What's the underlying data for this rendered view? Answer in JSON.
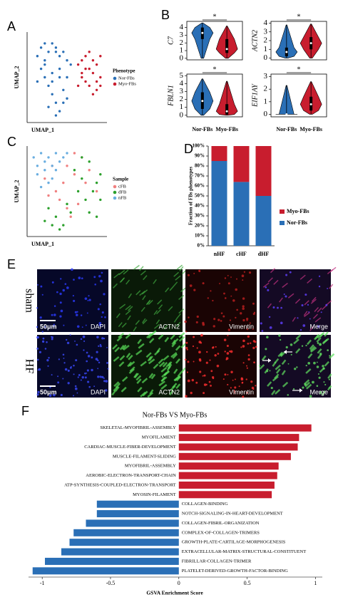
{
  "panel_labels": [
    "A",
    "B",
    "C",
    "D",
    "E",
    "F"
  ],
  "chart_data": [
    {
      "type": "scatter",
      "legend_title": "Phenotype",
      "x_label": "UMAP_1",
      "y_label": "UMAP_2",
      "xlim": [
        -10,
        10
      ],
      "ylim": [
        -10,
        10
      ],
      "series": [
        {
          "name": "Nor-FBs",
          "color": "#2a6fb6",
          "x": [
            -8,
            -7,
            -6,
            -5,
            -4,
            -3,
            -2,
            -1,
            0,
            1,
            -7,
            -6,
            -5,
            -4,
            -3,
            -2,
            -1,
            0,
            -8,
            -6,
            -4,
            -2,
            0,
            -5,
            -3,
            -1,
            -6,
            -4,
            -2,
            -3
          ],
          "values": [
            5,
            7,
            8,
            6,
            8,
            7,
            5,
            6,
            4,
            3,
            2,
            0,
            -2,
            -4,
            -6,
            -8,
            -3,
            0,
            -1,
            3,
            1,
            2,
            -5,
            -7,
            -9,
            -6,
            4,
            -1,
            0,
            6
          ]
        },
        {
          "name": "Myo-FBs",
          "color": "#c81d2e",
          "x": [
            3,
            4,
            5,
            6,
            7,
            8,
            9,
            4,
            5,
            6,
            7,
            8,
            9,
            3,
            5,
            7,
            9,
            6,
            8,
            4
          ],
          "values": [
            3,
            4,
            5,
            6,
            4,
            3,
            5,
            0,
            -1,
            -2,
            1,
            -3,
            0,
            -2,
            2,
            -4,
            -2,
            2,
            -1,
            1
          ]
        }
      ]
    },
    {
      "type": "violin",
      "categories": [
        "Nor-FBs",
        "Myo-FBs"
      ],
      "colors": [
        "#2a6fb6",
        "#c81d2e"
      ],
      "panels": [
        {
          "y_label": "C7",
          "ylim": [
            -0.2,
            4.8
          ],
          "yticks": [
            0,
            1,
            2,
            3,
            4
          ],
          "significance": "*",
          "groups": [
            {
              "min": 0,
              "q1": 2.5,
              "median": 3.3,
              "q3": 4,
              "max": 4.6
            },
            {
              "min": 0,
              "q1": 0.7,
              "median": 1.2,
              "q3": 2.5,
              "max": 4.2
            }
          ]
        },
        {
          "y_label": "ACTN2",
          "ylim": [
            -0.2,
            4.2
          ],
          "yticks": [
            0,
            1,
            2,
            3,
            4
          ],
          "significance": "*",
          "groups": [
            {
              "min": 0,
              "q1": 0.2,
              "median": 0.7,
              "q3": 1.2,
              "max": 3.8
            },
            {
              "min": 0,
              "q1": 1,
              "median": 1.7,
              "q3": 2.4,
              "max": 3.9
            }
          ]
        },
        {
          "y_label": "FBLN1",
          "ylim": [
            -0.2,
            5.2
          ],
          "yticks": [
            0,
            1,
            2,
            3,
            4,
            5
          ],
          "significance": "*",
          "groups": [
            {
              "min": 0,
              "q1": 0.8,
              "median": 1.8,
              "q3": 2.9,
              "max": 4.6
            },
            {
              "min": 0,
              "q1": 0.1,
              "median": 0.5,
              "q3": 1.4,
              "max": 4.3
            }
          ]
        },
        {
          "y_label": "EIF1AY",
          "ylim": [
            -0.2,
            3.2
          ],
          "yticks": [
            0,
            1,
            2,
            3
          ],
          "significance": "*",
          "groups": [
            {
              "min": 0,
              "q1": 0,
              "median": 0,
              "q3": 0,
              "max": 2.3
            },
            {
              "min": 0,
              "q1": 0.3,
              "median": 0.8,
              "q3": 1.4,
              "max": 2.6
            }
          ]
        }
      ]
    },
    {
      "type": "scatter",
      "legend_title": "Sample",
      "x_label": "UMAP_1",
      "y_label": "UMAP_2",
      "xlim": [
        -10,
        10
      ],
      "ylim": [
        -10,
        10
      ],
      "series": [
        {
          "name": "cFB",
          "color": "#f08080",
          "x": [
            -6,
            -3,
            0,
            2,
            4,
            -5,
            -1,
            3,
            6,
            1,
            -2,
            5,
            -4,
            8,
            2,
            0
          ],
          "values": [
            3,
            0,
            6,
            4,
            8,
            -1,
            2,
            -3,
            5,
            -6,
            -2,
            2,
            6,
            0,
            9,
            -4
          ]
        },
        {
          "name": "dFB",
          "color": "#2ca02c",
          "x": [
            2,
            4,
            6,
            8,
            9,
            3,
            5,
            7,
            9,
            -5,
            -3,
            -1,
            1,
            -4,
            -2,
            0,
            6,
            8,
            4,
            -6
          ],
          "values": [
            5,
            3,
            7,
            2,
            -2,
            0,
            -2,
            0,
            4,
            -4,
            -6,
            -8,
            -5,
            -8,
            -9,
            -3,
            -5,
            -6,
            8,
            -7
          ]
        },
        {
          "name": "nFB",
          "color": "#6aaee0",
          "x": [
            -9,
            -8,
            -7,
            -6,
            -5,
            -4,
            -3,
            -8,
            -6,
            -4,
            -2,
            -7,
            -5,
            -3,
            -1,
            0
          ],
          "values": [
            8,
            6,
            9,
            7,
            8,
            6,
            9,
            4,
            5,
            3,
            7,
            1,
            2,
            5,
            8,
            9
          ]
        }
      ]
    },
    {
      "type": "bar",
      "stacked": true,
      "y_label": "Fraction of FBs phenotypes",
      "categories": [
        "nHF",
        "cHF",
        "dHF"
      ],
      "ylim": [
        0,
        100
      ],
      "yticks": [
        {
          "value": 0,
          "label": "0%"
        },
        {
          "value": 10,
          "label": "10%"
        },
        {
          "value": 20,
          "label": "20%"
        },
        {
          "value": 30,
          "label": "30%"
        },
        {
          "value": 40,
          "label": "40%"
        },
        {
          "value": 50,
          "label": "50%"
        },
        {
          "value": 60,
          "label": "60%"
        },
        {
          "value": 70,
          "label": "70%"
        },
        {
          "value": 80,
          "label": "80%"
        },
        {
          "value": 90,
          "label": "90%"
        },
        {
          "value": 100,
          "label": "100%"
        }
      ],
      "series": [
        {
          "name": "Nor-FBs",
          "color": "#2a6fb6",
          "values": [
            85,
            64,
            50
          ]
        },
        {
          "name": "Myo-FBs",
          "color": "#c81d2e",
          "values": [
            15,
            36,
            50
          ]
        }
      ]
    },
    {
      "type": "barh",
      "title": "Nor-FBs VS Myo-FBs",
      "x_label": "GSVA Enrichment Score",
      "positive_color": "#c81d2e",
      "negative_color": "#2a6fb6",
      "xlim": [
        -1.1,
        1.05
      ],
      "xticks": [
        -1,
        -0.5,
        0,
        0.5,
        1
      ],
      "categories": [
        "SKELETAL-MYOFIBRIL-ASSEMBLY",
        "MYOFILAMENT",
        "CARDIAC-MUSCLE-FIBER-DEVELOPMENT",
        "MUSCLE-FILAMENT-SLIDING",
        "MYOFIBRIL-ASSEMBLY",
        "AEROBIC-ELECTRON-TRANSPORT-CHAIN",
        "ATP-SYNTHESIS-COUPLED-ELECTRON-TRANSPORT",
        "MYOSIN-FILAMENT",
        "COLLAGEN-BINDING",
        "NOTCH-SIGNALING-IN-HEART-DEVELOPMENT",
        "COLLAGEN-FIBRIL-ORGANIZATION",
        "COMPLEX-OF-COLLAGEN-TRIMERS",
        "GROWTH-PLATE-CARTILAGE-MORPHOGENESIS",
        "EXTRACELLULAR-MATRIX-STRUCTURAL-CONSTITUENT",
        "FIBRILLAR-COLLAGEN-TRIMER",
        "PLATELET-DERIVED-GROWTH-FACTOR-BINDING"
      ],
      "values": [
        0.97,
        0.88,
        0.87,
        0.82,
        0.73,
        0.72,
        0.7,
        0.68,
        -0.6,
        -0.6,
        -0.68,
        -0.77,
        -0.8,
        -0.86,
        -0.98,
        -1.07
      ]
    }
  ],
  "panel_e": {
    "rows": [
      "sham",
      "HF"
    ],
    "columns": [
      "DAPI",
      "ACTN2",
      "Vimentin",
      "Merge"
    ],
    "scale_bar": "50μm"
  }
}
